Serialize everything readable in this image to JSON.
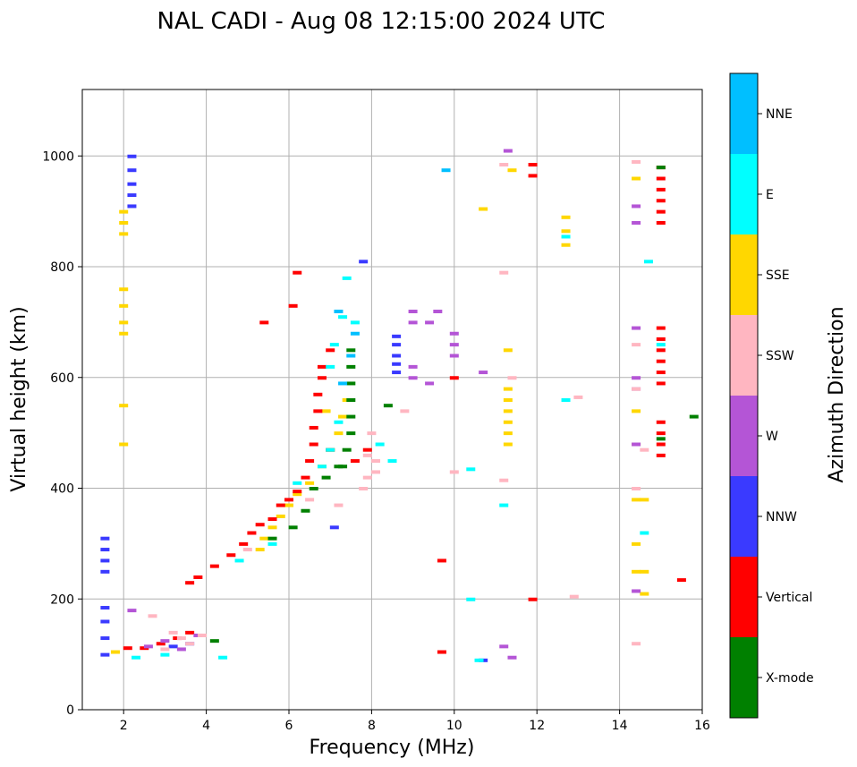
{
  "chart_data": {
    "type": "scatter",
    "title": "NAL CADI - Aug 08 12:15:00 2024 UTC",
    "xlabel": "Frequency (MHz)",
    "ylabel": "Virtual height (km)",
    "xlim": [
      1,
      16
    ],
    "ylim": [
      0,
      1120
    ],
    "xticks": [
      2,
      4,
      6,
      8,
      10,
      12,
      14,
      16
    ],
    "yticks": [
      0,
      200,
      400,
      600,
      800,
      1000
    ],
    "grid": true,
    "colorbar": {
      "label": "Azimuth Direction",
      "categories": [
        {
          "name": "X-mode",
          "color": "#008000"
        },
        {
          "name": "Vertical",
          "color": "#ff0000"
        },
        {
          "name": "NNW",
          "color": "#3a3aff"
        },
        {
          "name": "W",
          "color": "#b455d6"
        },
        {
          "name": "SSW",
          "color": "#ffb6c1"
        },
        {
          "name": "SSE",
          "color": "#ffd700"
        },
        {
          "name": "E",
          "color": "#00ffff"
        },
        {
          "name": "NNE",
          "color": "#00bfff"
        }
      ]
    },
    "series": [
      {
        "name": "NNW",
        "points": [
          [
            1.55,
            100
          ],
          [
            1.55,
            130
          ],
          [
            1.55,
            160
          ],
          [
            1.55,
            185
          ],
          [
            1.55,
            250
          ],
          [
            1.55,
            270
          ],
          [
            1.55,
            290
          ],
          [
            1.55,
            310
          ],
          [
            2.2,
            910
          ],
          [
            2.2,
            930
          ],
          [
            2.2,
            950
          ],
          [
            2.2,
            975
          ],
          [
            2.2,
            1000
          ],
          [
            3.2,
            115
          ],
          [
            3.6,
            120
          ],
          [
            7.1,
            330
          ],
          [
            7.8,
            810
          ],
          [
            8.6,
            610
          ],
          [
            8.6,
            625
          ],
          [
            8.6,
            640
          ],
          [
            8.6,
            660
          ],
          [
            8.6,
            675
          ],
          [
            10.7,
            90
          ]
        ]
      },
      {
        "name": "SSE",
        "points": [
          [
            2.0,
            860
          ],
          [
            2.0,
            880
          ],
          [
            2.0,
            900
          ],
          [
            2.0,
            680
          ],
          [
            2.0,
            700
          ],
          [
            2.0,
            730
          ],
          [
            2.0,
            760
          ],
          [
            2.0,
            480
          ],
          [
            2.0,
            550
          ],
          [
            1.8,
            105
          ],
          [
            5.3,
            290
          ],
          [
            5.4,
            310
          ],
          [
            5.6,
            330
          ],
          [
            5.8,
            350
          ],
          [
            6.0,
            370
          ],
          [
            6.2,
            390
          ],
          [
            6.5,
            410
          ],
          [
            6.8,
            440
          ],
          [
            7.0,
            470
          ],
          [
            7.2,
            500
          ],
          [
            7.3,
            530
          ],
          [
            7.4,
            560
          ],
          [
            6.9,
            540
          ],
          [
            11.3,
            480
          ],
          [
            11.3,
            500
          ],
          [
            11.3,
            520
          ],
          [
            11.3,
            540
          ],
          [
            11.3,
            560
          ],
          [
            11.3,
            580
          ],
          [
            11.3,
            650
          ],
          [
            12.7,
            840
          ],
          [
            12.7,
            865
          ],
          [
            12.7,
            890
          ],
          [
            14.4,
            380
          ],
          [
            14.4,
            250
          ],
          [
            14.4,
            300
          ],
          [
            14.4,
            480
          ],
          [
            14.4,
            540
          ],
          [
            14.4,
            960
          ],
          [
            14.6,
            380
          ],
          [
            14.6,
            250
          ],
          [
            14.6,
            210
          ],
          [
            10.7,
            905
          ],
          [
            11.4,
            975
          ]
        ]
      },
      {
        "name": "Vertical",
        "points": [
          [
            2.1,
            112
          ],
          [
            2.5,
            112
          ],
          [
            2.9,
            120
          ],
          [
            3.3,
            130
          ],
          [
            3.6,
            140
          ],
          [
            3.6,
            230
          ],
          [
            3.8,
            240
          ],
          [
            4.2,
            260
          ],
          [
            4.6,
            280
          ],
          [
            4.9,
            300
          ],
          [
            5.1,
            320
          ],
          [
            5.3,
            335
          ],
          [
            5.6,
            345
          ],
          [
            5.8,
            370
          ],
          [
            6.0,
            380
          ],
          [
            6.2,
            395
          ],
          [
            6.4,
            420
          ],
          [
            6.5,
            450
          ],
          [
            6.6,
            480
          ],
          [
            6.6,
            510
          ],
          [
            6.7,
            540
          ],
          [
            6.7,
            570
          ],
          [
            6.8,
            600
          ],
          [
            6.8,
            620
          ],
          [
            7.0,
            650
          ],
          [
            6.1,
            730
          ],
          [
            6.2,
            790
          ],
          [
            5.4,
            700
          ],
          [
            7.0,
            470
          ],
          [
            7.6,
            450
          ],
          [
            7.9,
            470
          ],
          [
            15.0,
            880
          ],
          [
            15.0,
            900
          ],
          [
            15.0,
            920
          ],
          [
            15.0,
            940
          ],
          [
            15.0,
            960
          ],
          [
            15.0,
            980
          ],
          [
            15.0,
            460
          ],
          [
            15.0,
            480
          ],
          [
            15.0,
            500
          ],
          [
            15.0,
            520
          ],
          [
            15.0,
            590
          ],
          [
            15.0,
            610
          ],
          [
            15.0,
            630
          ],
          [
            15.0,
            650
          ],
          [
            15.0,
            670
          ],
          [
            15.0,
            690
          ],
          [
            15.5,
            235
          ],
          [
            9.7,
            270
          ],
          [
            9.7,
            105
          ],
          [
            11.9,
            200
          ],
          [
            11.9,
            965
          ],
          [
            11.9,
            985
          ],
          [
            10.0,
            600
          ]
        ]
      },
      {
        "name": "X-mode",
        "points": [
          [
            4.2,
            125
          ],
          [
            5.6,
            310
          ],
          [
            6.1,
            330
          ],
          [
            6.4,
            360
          ],
          [
            6.6,
            400
          ],
          [
            6.9,
            420
          ],
          [
            7.2,
            440
          ],
          [
            7.4,
            470
          ],
          [
            7.5,
            500
          ],
          [
            7.5,
            530
          ],
          [
            7.5,
            560
          ],
          [
            7.5,
            590
          ],
          [
            7.5,
            620
          ],
          [
            7.5,
            650
          ],
          [
            7.3,
            440
          ],
          [
            8.4,
            550
          ],
          [
            15.0,
            980
          ],
          [
            15.0,
            490
          ],
          [
            15.8,
            530
          ]
        ]
      },
      {
        "name": "E",
        "points": [
          [
            2.3,
            95
          ],
          [
            3.0,
            100
          ],
          [
            4.4,
            95
          ],
          [
            4.8,
            270
          ],
          [
            5.6,
            300
          ],
          [
            6.2,
            410
          ],
          [
            6.8,
            440
          ],
          [
            7.0,
            470
          ],
          [
            7.2,
            520
          ],
          [
            7.0,
            620
          ],
          [
            7.1,
            660
          ],
          [
            7.3,
            710
          ],
          [
            7.6,
            700
          ],
          [
            7.4,
            780
          ],
          [
            8.2,
            480
          ],
          [
            8.5,
            450
          ],
          [
            10.4,
            200
          ],
          [
            10.4,
            435
          ],
          [
            10.6,
            90
          ],
          [
            11.2,
            370
          ],
          [
            12.7,
            855
          ],
          [
            12.7,
            560
          ],
          [
            14.6,
            320
          ],
          [
            15.0,
            660
          ],
          [
            14.7,
            810
          ]
        ]
      },
      {
        "name": "NNE",
        "points": [
          [
            7.3,
            590
          ],
          [
            7.5,
            640
          ],
          [
            7.6,
            680
          ],
          [
            7.2,
            720
          ],
          [
            9.8,
            975
          ]
        ]
      },
      {
        "name": "W",
        "points": [
          [
            2.2,
            180
          ],
          [
            2.6,
            115
          ],
          [
            3.0,
            125
          ],
          [
            3.4,
            110
          ],
          [
            3.8,
            135
          ],
          [
            9.0,
            720
          ],
          [
            9.0,
            700
          ],
          [
            9.0,
            600
          ],
          [
            9.0,
            620
          ],
          [
            9.4,
            590
          ],
          [
            9.4,
            700
          ],
          [
            9.6,
            720
          ],
          [
            10.0,
            680
          ],
          [
            10.0,
            660
          ],
          [
            10.0,
            640
          ],
          [
            11.3,
            1010
          ],
          [
            14.4,
            910
          ],
          [
            14.4,
            880
          ],
          [
            14.4,
            690
          ],
          [
            14.4,
            600
          ],
          [
            14.4,
            580
          ],
          [
            14.4,
            480
          ],
          [
            14.4,
            215
          ],
          [
            11.2,
            115
          ],
          [
            11.4,
            95
          ],
          [
            10.7,
            610
          ]
        ]
      },
      {
        "name": "SSW",
        "points": [
          [
            2.7,
            170
          ],
          [
            3.0,
            110
          ],
          [
            3.2,
            140
          ],
          [
            3.4,
            130
          ],
          [
            3.6,
            120
          ],
          [
            3.9,
            135
          ],
          [
            5.0,
            290
          ],
          [
            6.5,
            380
          ],
          [
            7.2,
            370
          ],
          [
            7.8,
            400
          ],
          [
            7.9,
            420
          ],
          [
            8.1,
            430
          ],
          [
            8.1,
            450
          ],
          [
            7.9,
            460
          ],
          [
            8.0,
            500
          ],
          [
            8.8,
            540
          ],
          [
            11.2,
            985
          ],
          [
            11.2,
            790
          ],
          [
            11.2,
            415
          ],
          [
            12.9,
            205
          ],
          [
            14.4,
            120
          ],
          [
            14.4,
            660
          ],
          [
            14.4,
            580
          ],
          [
            14.4,
            400
          ],
          [
            14.4,
            990
          ],
          [
            14.6,
            470
          ],
          [
            10.0,
            430
          ],
          [
            11.4,
            600
          ],
          [
            13.0,
            565
          ]
        ]
      }
    ]
  }
}
